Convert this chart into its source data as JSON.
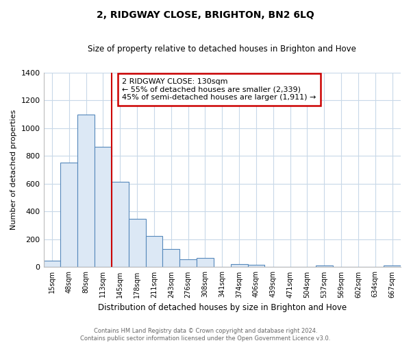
{
  "title": "2, RIDGWAY CLOSE, BRIGHTON, BN2 6LQ",
  "subtitle": "Size of property relative to detached houses in Brighton and Hove",
  "xlabel": "Distribution of detached houses by size in Brighton and Hove",
  "ylabel": "Number of detached properties",
  "bar_labels": [
    "15sqm",
    "48sqm",
    "80sqm",
    "113sqm",
    "145sqm",
    "178sqm",
    "211sqm",
    "243sqm",
    "276sqm",
    "308sqm",
    "341sqm",
    "374sqm",
    "406sqm",
    "439sqm",
    "471sqm",
    "504sqm",
    "537sqm",
    "569sqm",
    "602sqm",
    "634sqm",
    "667sqm"
  ],
  "bar_values": [
    45,
    750,
    1095,
    865,
    615,
    348,
    222,
    130,
    57,
    68,
    0,
    20,
    15,
    3,
    0,
    0,
    10,
    0,
    0,
    0,
    10
  ],
  "bar_color": "#dce8f5",
  "bar_edge_color": "#5588bb",
  "ylim": [
    0,
    1400
  ],
  "yticks": [
    0,
    200,
    400,
    600,
    800,
    1000,
    1200,
    1400
  ],
  "vline_color": "#cc0000",
  "vline_x_index": 3.5,
  "annotation_text": "2 RIDGWAY CLOSE: 130sqm\n← 55% of detached houses are smaller (2,339)\n45% of semi-detached houses are larger (1,911) →",
  "annotation_box_color": "#ffffff",
  "annotation_box_edgecolor": "#cc0000",
  "footer_line1": "Contains HM Land Registry data © Crown copyright and database right 2024.",
  "footer_line2": "Contains public sector information licensed under the Open Government Licence v3.0.",
  "background_color": "#ffffff",
  "grid_color": "#c8d8e8"
}
